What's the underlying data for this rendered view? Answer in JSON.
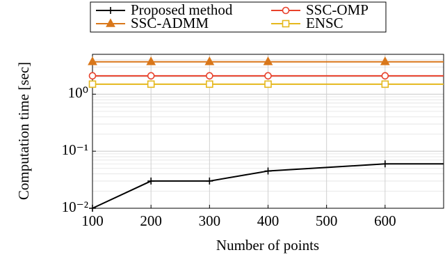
{
  "chart_data": {
    "type": "line",
    "x_label": "Number of points",
    "y_label": "Computation time [sec]",
    "x": [
      100,
      200,
      300,
      400,
      600,
      700
    ],
    "series": [
      {
        "name": "Proposed method",
        "color": "#000000",
        "marker": "plus",
        "values": [
          0.01,
          0.03,
          0.03,
          0.045,
          0.06,
          0.06
        ]
      },
      {
        "name": "SSC-OMP",
        "color": "#e8412b",
        "marker": "circle",
        "values": [
          2.1,
          2.1,
          2.1,
          2.1,
          2.1,
          2.1
        ]
      },
      {
        "name": "SSC-ADMM",
        "color": "#d9771a",
        "marker": "triangle",
        "values": [
          3.7,
          3.7,
          3.7,
          3.7,
          3.7,
          3.7
        ]
      },
      {
        "name": "ENSC",
        "color": "#e5b81d",
        "marker": "square",
        "values": [
          1.5,
          1.5,
          1.5,
          1.5,
          1.5,
          1.5
        ]
      }
    ],
    "xlim": [
      100,
      700
    ],
    "xticks": [
      100,
      200,
      300,
      400,
      500,
      600
    ],
    "ylim": [
      0.01,
      5
    ],
    "yticks": [
      {
        "value": 0.01,
        "label": "10⁻²"
      },
      {
        "value": 0.1,
        "label": "10⁻¹"
      },
      {
        "value": 1,
        "label": "10⁰"
      }
    ],
    "log_y": true,
    "grid": true,
    "legend": "top"
  }
}
